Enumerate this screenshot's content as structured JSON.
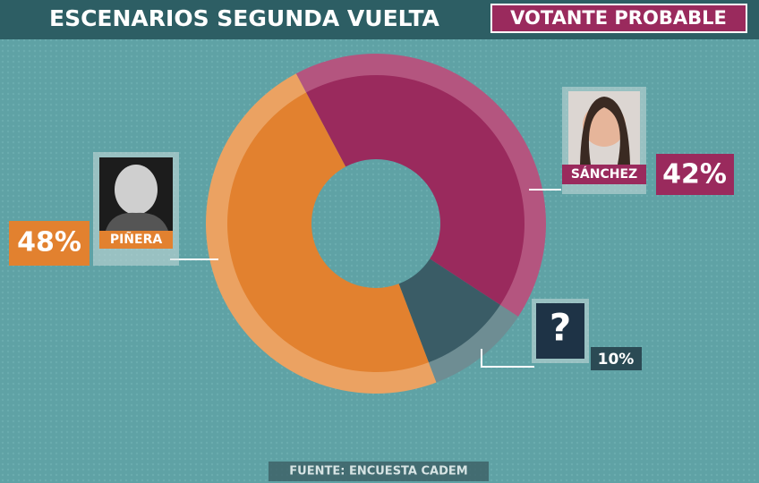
{
  "chart_data": {
    "type": "pie",
    "donut": true,
    "title": "ESCENARIOS SEGUNDA VUELTA",
    "subtitle": "VOTANTE PROBABLE",
    "source": "FUENTE: ENCUESTA CADEM",
    "categories": [
      "SÁNCHEZ",
      "?",
      "PIÑERA"
    ],
    "values": [
      42,
      10,
      48
    ],
    "value_labels": [
      "42%",
      "10%",
      "48%"
    ],
    "colors": [
      "#9a2a5d",
      "#3a5c66",
      "#e2812f"
    ],
    "ring_colors": [
      "#b4557f",
      "#6e8d93",
      "#eba262"
    ]
  }
}
